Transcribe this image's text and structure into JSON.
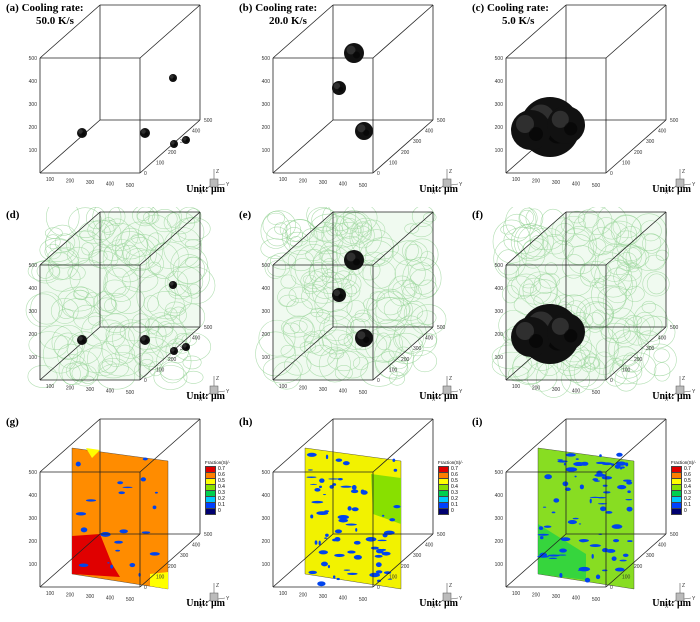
{
  "panels": [
    {
      "id": "a",
      "label": "(a) Cooling rate:",
      "sublabel": "50.0 K/s",
      "row": 0,
      "col": 0
    },
    {
      "id": "b",
      "label": "(b) Cooling rate:",
      "sublabel": "20.0 K/s",
      "row": 0,
      "col": 1
    },
    {
      "id": "c",
      "label": "(c) Cooling rate:",
      "sublabel": "5.0 K/s",
      "row": 0,
      "col": 2
    },
    {
      "id": "d",
      "label": "(d)",
      "sublabel": "",
      "row": 1,
      "col": 0
    },
    {
      "id": "e",
      "label": "(e)",
      "sublabel": "",
      "row": 1,
      "col": 1
    },
    {
      "id": "f",
      "label": "(f)",
      "sublabel": "",
      "row": 1,
      "col": 2
    },
    {
      "id": "g",
      "label": "(g)",
      "sublabel": "",
      "row": 2,
      "col": 0
    },
    {
      "id": "h",
      "label": "(h)",
      "sublabel": "",
      "row": 2,
      "col": 1
    },
    {
      "id": "i",
      "label": "(i)",
      "sublabel": "",
      "row": 2,
      "col": 2
    }
  ],
  "unit_label": "Unit: μm",
  "ticks": {
    "vertical": [
      "500",
      "400",
      "300",
      "200",
      "100"
    ],
    "front": [
      "100",
      "200",
      "300",
      "400",
      "500"
    ],
    "side": [
      "0",
      "100",
      "200",
      "300",
      "400",
      "500"
    ]
  },
  "axis_letters": {
    "z": "Z",
    "x": "X",
    "y": "Y"
  },
  "legend": {
    "title": "Fraction(S)/-",
    "entries": [
      {
        "label": "0.7",
        "color": "#e00000"
      },
      {
        "label": "0.6",
        "color": "#ff7f00"
      },
      {
        "label": "0.5",
        "color": "#ffff00"
      },
      {
        "label": "0.4",
        "color": "#88e000"
      },
      {
        "label": "0.3",
        "color": "#00d050"
      },
      {
        "label": "0.2",
        "color": "#00c8ff"
      },
      {
        "label": "0.1",
        "color": "#0040ff"
      },
      {
        "label": "0",
        "color": "#000070"
      }
    ]
  },
  "colors": {
    "pore": "#111111",
    "grain_green": "#33aa33",
    "slice_g": "#ff8c00",
    "slice_h": "#f2f200",
    "slice_i": "#88dd22",
    "pore_blue": "#0044ee"
  }
}
